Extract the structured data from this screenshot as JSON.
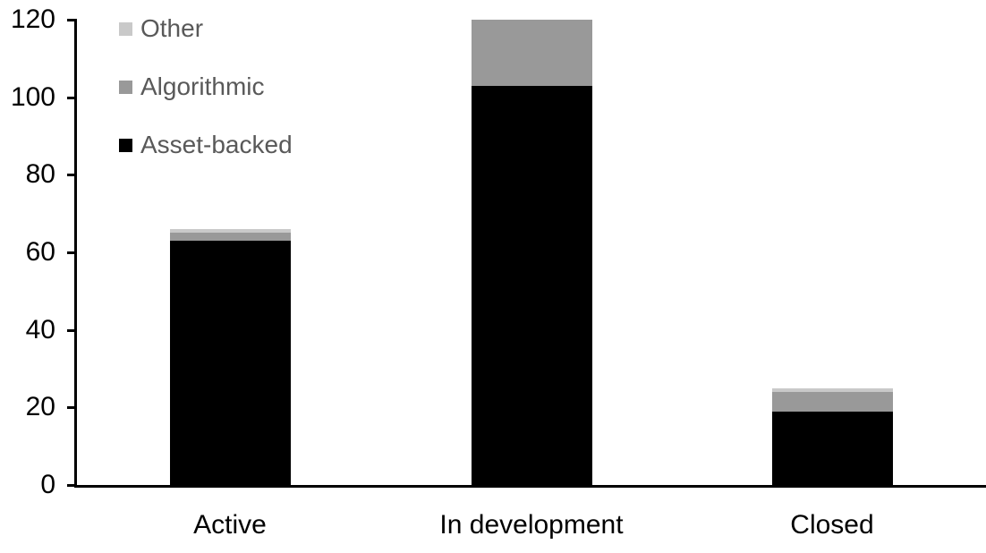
{
  "chart_data": {
    "type": "bar",
    "stacked": true,
    "title": "",
    "xlabel": "",
    "ylabel": "",
    "grid": false,
    "categories": [
      "Active",
      "In development",
      "Closed"
    ],
    "series": [
      {
        "name": "Asset-backed",
        "color": "#000000",
        "values": [
          63,
          103,
          19
        ]
      },
      {
        "name": "Algorithmic",
        "color": "#999999",
        "values": [
          2,
          17,
          5
        ]
      },
      {
        "name": "Other",
        "color": "#C9C9C9",
        "values": [
          1,
          0,
          1
        ]
      }
    ],
    "totals": [
      66,
      120,
      25
    ],
    "ylim": [
      0,
      120
    ],
    "yticks": [
      0,
      20,
      40,
      60,
      80,
      100,
      120
    ],
    "legend": {
      "position": "top-left",
      "items": [
        {
          "label": "Other",
          "color": "#C9C9C9"
        },
        {
          "label": "Algorithmic",
          "color": "#999999"
        },
        {
          "label": "Asset-backed",
          "color": "#000000"
        }
      ]
    }
  },
  "colors": {
    "background": "#FFFFFF",
    "axis": "#000000",
    "tick_label_text": "#000000",
    "category_label_text": "#000000",
    "legend_text": "#595959"
  }
}
